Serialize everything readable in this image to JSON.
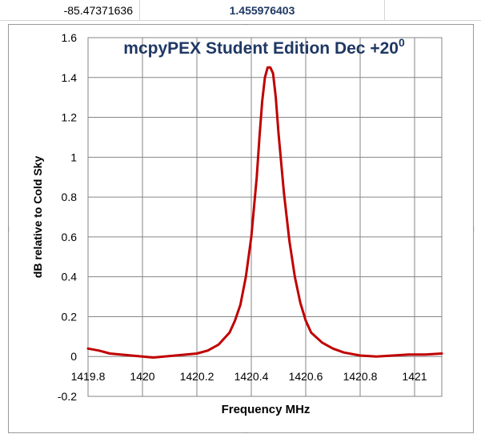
{
  "cells": {
    "a": "-85.47371636",
    "b": "1.455976403",
    "c": ""
  },
  "chart_data": {
    "type": "line",
    "title": "mcpyPEX Student Edition  Dec +20",
    "title_superscript": "0",
    "xlabel": "Frequency MHz",
    "ylabel": "dB relative to Cold Sky",
    "xlim": [
      1419.8,
      1421.1
    ],
    "ylim": [
      -0.2,
      1.6
    ],
    "x_ticks": [
      1419.8,
      1420,
      1420.2,
      1420.4,
      1420.6,
      1420.8,
      1421
    ],
    "x_tick_labels": [
      "1419.8",
      "1420",
      "1420.2",
      "1420.4",
      "1420.6",
      "1420.8",
      "1421"
    ],
    "y_ticks": [
      -0.2,
      0,
      0.2,
      0.4,
      0.6,
      0.8,
      1,
      1.2,
      1.4,
      1.6
    ],
    "y_tick_labels": [
      "-0.2",
      "0",
      "0.2",
      "0.4",
      "0.6",
      "0.8",
      "1",
      "1.2",
      "1.4",
      "1.6"
    ],
    "grid": true,
    "legend": "none",
    "series": [
      {
        "color": "#c00000",
        "x": [
          1419.8,
          1419.84,
          1419.88,
          1419.92,
          1419.96,
          1420.0,
          1420.04,
          1420.08,
          1420.12,
          1420.16,
          1420.2,
          1420.24,
          1420.28,
          1420.32,
          1420.34,
          1420.36,
          1420.38,
          1420.4,
          1420.42,
          1420.43,
          1420.44,
          1420.45,
          1420.46,
          1420.47,
          1420.48,
          1420.49,
          1420.5,
          1420.52,
          1420.54,
          1420.56,
          1420.58,
          1420.6,
          1420.62,
          1420.66,
          1420.7,
          1420.74,
          1420.8,
          1420.86,
          1420.92,
          1420.98,
          1421.04,
          1421.1
        ],
        "y": [
          0.04,
          0.03,
          0.015,
          0.01,
          0.005,
          0.0,
          -0.005,
          0.0,
          0.005,
          0.01,
          0.015,
          0.03,
          0.06,
          0.12,
          0.18,
          0.26,
          0.4,
          0.6,
          0.9,
          1.1,
          1.28,
          1.4,
          1.45,
          1.45,
          1.42,
          1.3,
          1.12,
          0.82,
          0.58,
          0.4,
          0.27,
          0.18,
          0.12,
          0.07,
          0.04,
          0.02,
          0.005,
          0.0,
          0.005,
          0.01,
          0.01,
          0.015
        ]
      }
    ]
  }
}
